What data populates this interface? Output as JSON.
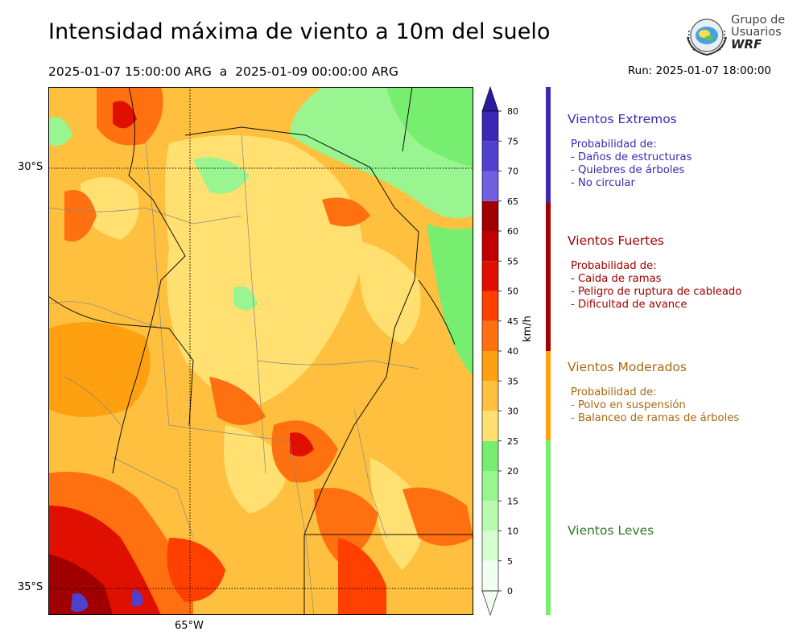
{
  "title": "Intensidad máxima de viento a 10m del suelo",
  "period": "2025-01-07 15:00:00 ARG  a  2025-01-09 00:00:00 ARG",
  "run": "Run: 2025-01-07 18:00:00",
  "logo": {
    "line1": "Grupo de",
    "line2": "Usuarios",
    "line3": "WRF"
  },
  "map": {
    "lat_labels": [
      "30°S",
      "35°S"
    ],
    "lon_labels": [
      "65°W"
    ]
  },
  "colorbar": {
    "unit": "km/h",
    "ticks": [
      "0",
      "5",
      "10",
      "15",
      "20",
      "25",
      "30",
      "35",
      "40",
      "45",
      "50",
      "55",
      "60",
      "65",
      "70",
      "75",
      "80"
    ],
    "colors": [
      "#f0fff0",
      "#d5fdd0",
      "#b8fbb0",
      "#98f590",
      "#78ee70",
      "#ffe070",
      "#ffc040",
      "#ffa010",
      "#ff7010",
      "#ff4000",
      "#e01000",
      "#c00000",
      "#a00000",
      "#7060e0",
      "#5040d0",
      "#3c28b8",
      "#2a1aa0"
    ]
  },
  "categories": [
    {
      "title": "Vientos Extremos",
      "color": "#3a2ab0",
      "lines": [
        "Probabilidad de:",
        "- Daños de estructuras",
        "- Quiebres de árboles",
        "- No circular"
      ]
    },
    {
      "title": "Vientos Fuertes",
      "color": "#a00000",
      "lines": [
        "Probabilidad de:",
        "- Caida de ramas",
        "- Peligro de ruptura de cableado",
        "- Dificultad de avance"
      ]
    },
    {
      "title": "Vientos Moderados",
      "color": "#a86a10",
      "lines": [
        "Probabilidad de:",
        "- Polvo en suspensión",
        "- Balanceo de ramas de árboles"
      ]
    },
    {
      "title": "Vientos Leves",
      "color": "#2e7a2e",
      "lines": []
    }
  ],
  "category_bar_colors": [
    "#3a2ab0",
    "#a00000",
    "#ffa010",
    "#78ee70"
  ]
}
